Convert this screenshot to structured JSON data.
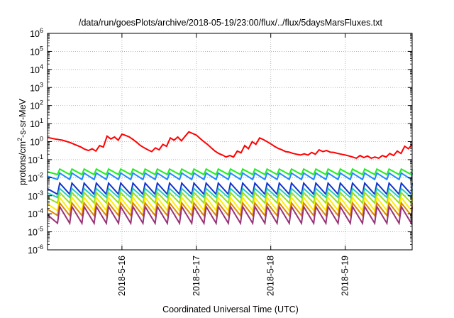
{
  "chart_data": {
    "type": "line",
    "title": "/data/run/goesPlots/archive/2018-05-19/23:00/flux/../flux/5daysMarsFluxes.txt",
    "xlabel": "Coordinated Universal Time (UTC)",
    "ylabel_prefix": "protons/cm",
    "ylabel_sup": "2",
    "ylabel_suffix": "-s-sr-MeV",
    "y_scale": "log",
    "ylim_exp": [
      -6,
      6
    ],
    "y_tick_exponents": [
      -6,
      -5,
      -4,
      -3,
      -2,
      -1,
      0,
      1,
      2,
      3,
      4,
      5,
      6
    ],
    "y_tick_base": "10",
    "xlim_days": [
      0,
      4.9
    ],
    "x_ticks": [
      {
        "label": "2018-5-16",
        "day": 1
      },
      {
        "label": "2018-5-17",
        "day": 2
      },
      {
        "label": "2018-5-18",
        "day": 3
      },
      {
        "label": "2018-5-19",
        "day": 4
      }
    ],
    "grid": true,
    "series": [
      {
        "color": "#ff0000",
        "kind": "main",
        "x": [
          0,
          0.1,
          0.2,
          0.3,
          0.4,
          0.45,
          0.5,
          0.55,
          0.6,
          0.65,
          0.7,
          0.75,
          0.8,
          0.85,
          0.9,
          0.95,
          1.0,
          1.05,
          1.1,
          1.15,
          1.2,
          1.25,
          1.3,
          1.35,
          1.4,
          1.45,
          1.5,
          1.55,
          1.6,
          1.65,
          1.7,
          1.75,
          1.8,
          1.85,
          1.9,
          1.95,
          2.0,
          2.05,
          2.1,
          2.15,
          2.2,
          2.25,
          2.3,
          2.35,
          2.4,
          2.45,
          2.5,
          2.55,
          2.6,
          2.65,
          2.7,
          2.75,
          2.8,
          2.85,
          2.9,
          2.95,
          3.0,
          3.05,
          3.1,
          3.15,
          3.2,
          3.25,
          3.3,
          3.35,
          3.4,
          3.45,
          3.5,
          3.55,
          3.6,
          3.65,
          3.7,
          3.75,
          3.8,
          3.85,
          3.9,
          3.95,
          4.0,
          4.05,
          4.1,
          4.15,
          4.2,
          4.25,
          4.3,
          4.35,
          4.4,
          4.45,
          4.5,
          4.55,
          4.6,
          4.65,
          4.7,
          4.75,
          4.8,
          4.85,
          4.9
        ],
        "y": [
          1.7,
          1.4,
          1.2,
          0.9,
          0.6,
          0.5,
          0.38,
          0.32,
          0.4,
          0.3,
          0.6,
          0.5,
          2.0,
          1.4,
          1.8,
          1.2,
          2.6,
          2.2,
          1.8,
          1.3,
          0.9,
          0.6,
          0.45,
          0.35,
          0.28,
          0.45,
          0.35,
          0.7,
          0.55,
          1.6,
          1.2,
          1.8,
          1.1,
          2.0,
          3.5,
          2.8,
          2.3,
          1.5,
          1.0,
          0.7,
          0.45,
          0.3,
          0.22,
          0.18,
          0.14,
          0.17,
          0.14,
          0.3,
          0.24,
          0.6,
          0.4,
          1.0,
          0.7,
          1.6,
          1.3,
          1.0,
          0.75,
          0.55,
          0.42,
          0.35,
          0.28,
          0.26,
          0.22,
          0.2,
          0.18,
          0.21,
          0.18,
          0.25,
          0.2,
          0.35,
          0.28,
          0.32,
          0.26,
          0.25,
          0.22,
          0.2,
          0.18,
          0.16,
          0.14,
          0.12,
          0.17,
          0.13,
          0.16,
          0.12,
          0.14,
          0.12,
          0.17,
          0.14,
          0.22,
          0.17,
          0.3,
          0.22,
          0.55,
          0.4,
          0.7
        ]
      },
      {
        "color": "#22ee22",
        "kind": "saw",
        "peak": 0.03,
        "trough": 0.015
      },
      {
        "color": "#2288ff",
        "kind": "saw",
        "peak": 0.018,
        "trough": 0.008
      },
      {
        "color": "#1133cc",
        "kind": "saw",
        "peak": 0.005,
        "trough": 0.0012
      },
      {
        "color": "#22ccbb",
        "kind": "saw",
        "peak": 0.0025,
        "trough": 0.0008
      },
      {
        "color": "#99dd22",
        "kind": "saw",
        "peak": 0.0015,
        "trough": 0.0004
      },
      {
        "color": "#ffee00",
        "kind": "saw",
        "peak": 0.0008,
        "trough": 0.00015
      },
      {
        "color": "#dd8800",
        "kind": "saw",
        "peak": 0.0004,
        "trough": 8e-05
      },
      {
        "color": "#993377",
        "kind": "saw",
        "peak": 0.00025,
        "trough": 3e-05
      }
    ],
    "saw_periods_per_day": 6.1
  }
}
